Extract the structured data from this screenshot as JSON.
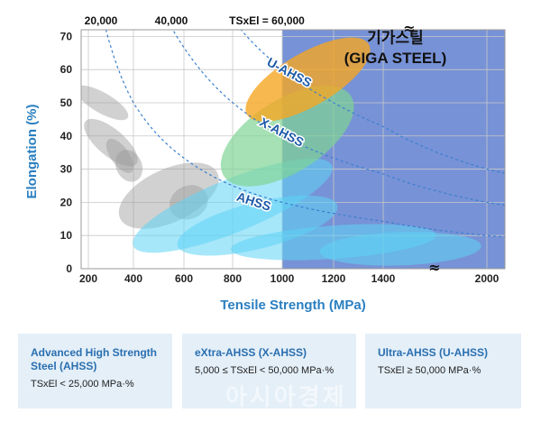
{
  "chart_data": {
    "type": "scatter",
    "title": "",
    "xlabel": "Tensile Strength (MPa)",
    "ylabel": "Elongation (%)",
    "xlim": [
      200,
      2100
    ],
    "ylim": [
      0,
      72
    ],
    "x_ticks": [
      200,
      400,
      600,
      800,
      1000,
      1200,
      1400,
      2000
    ],
    "x_tick_labels": [
      "200",
      "400",
      "600",
      "800",
      "1000",
      "1200",
      "1400",
      "2000"
    ],
    "y_ticks": [
      0,
      10,
      20,
      30,
      40,
      50,
      60,
      70
    ],
    "y_tick_labels": [
      "0",
      "10",
      "20",
      "30",
      "40",
      "50",
      "60",
      "70"
    ],
    "giga_region_x_min": 1000,
    "iso_curves": [
      {
        "label": "20,000",
        "ts_x_el": 20000
      },
      {
        "label": "40,000",
        "ts_x_el": 40000
      },
      {
        "label": "TSxEl = 60,000",
        "ts_x_el": 60000
      }
    ],
    "regions": [
      {
        "name": "conventional",
        "color": "#9a9a9a",
        "opacity": 0.45,
        "ellipses": [
          {
            "cx": 260,
            "cy": 50,
            "rx": 45,
            "ry": 9,
            "angle": -60
          },
          {
            "cx": 300,
            "cy": 38,
            "rx": 60,
            "ry": 10,
            "angle": -50
          },
          {
            "cx": 340,
            "cy": 34,
            "rx": 40,
            "ry": 6,
            "angle": -35
          },
          {
            "cx": 380,
            "cy": 31,
            "rx": 55,
            "ry": 5,
            "angle": -25
          },
          {
            "cx": 540,
            "cy": 22,
            "rx": 220,
            "ry": 8,
            "angle": -25
          },
          {
            "cx": 620,
            "cy": 20,
            "rx": 80,
            "ry": 5,
            "angle": -25
          }
        ]
      },
      {
        "name": "AHSS",
        "color": "#5fd3f5",
        "opacity": 0.55,
        "ellipses": [
          {
            "cx": 800,
            "cy": 19,
            "rx": 430,
            "ry": 8,
            "angle": -22
          },
          {
            "cx": 900,
            "cy": 13,
            "rx": 330,
            "ry": 7,
            "angle": -14
          },
          {
            "cx": 1200,
            "cy": 8,
            "rx": 450,
            "ry": 5,
            "angle": -4
          },
          {
            "cx": 1500,
            "cy": 6,
            "rx": 400,
            "ry": 5,
            "angle": -2
          }
        ]
      },
      {
        "name": "X-AHSS",
        "color": "#7fd494",
        "opacity": 0.7,
        "ellipses": [
          {
            "cx": 1020,
            "cy": 40,
            "rx": 300,
            "ry": 11,
            "angle": -32
          }
        ]
      },
      {
        "name": "U-AHSS",
        "color": "#f5a623",
        "opacity": 0.8,
        "ellipses": [
          {
            "cx": 1100,
            "cy": 57,
            "rx": 280,
            "ry": 8,
            "angle": -30
          }
        ]
      }
    ],
    "annotations": [
      {
        "text": "U-AHSS",
        "x": 1020,
        "y": 58
      },
      {
        "text": "X-AHSS",
        "x": 990,
        "y": 40
      },
      {
        "text": "AHSS",
        "x": 880,
        "y": 19
      },
      {
        "text": "기가스틸",
        "x": 1470,
        "y": 68
      },
      {
        "text": "(GIGA STEEL)",
        "x": 1470,
        "y": 62
      }
    ],
    "axis_breaks": [
      "≈",
      "≈"
    ],
    "colors": {
      "giga_region": "#5f7fcf",
      "grid": "#c8c8c8",
      "iso_curve": "#3b7fd0",
      "axis_title": "#2a7fc1"
    }
  },
  "legend": [
    {
      "title": "Advanced High Strength Steel (AHSS)",
      "desc": "TSxEl < 25,000 MPa·%"
    },
    {
      "title": "eXtra-AHSS (X-AHSS)",
      "desc": "5,000 ≤ TSxEl < 50,000 MPa·%"
    },
    {
      "title": "Ultra-AHSS (U-AHSS)",
      "desc": "TSxEl ≥ 50,000 MPa·%"
    }
  ],
  "watermark": "아시아경제"
}
